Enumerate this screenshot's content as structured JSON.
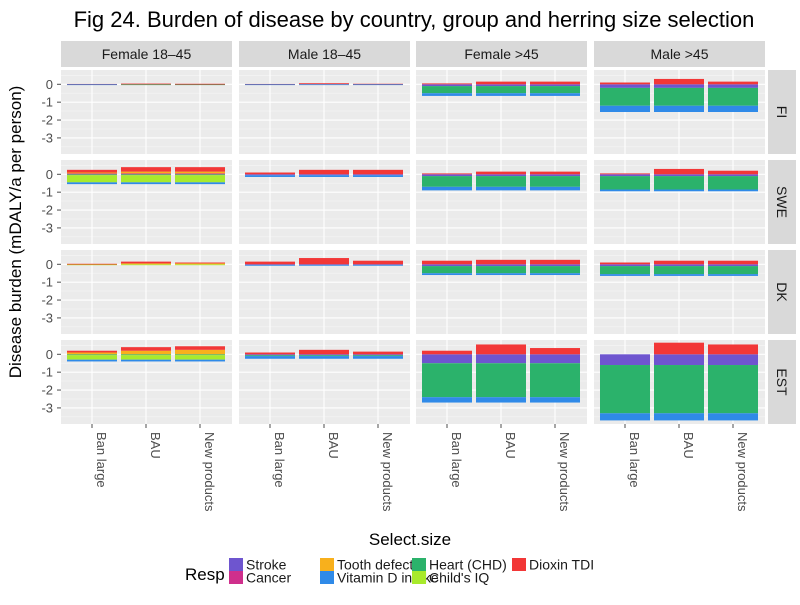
{
  "chart_data": {
    "type": "bar",
    "stacked": true,
    "title": "Fig 24. Burden of disease by country, group and herring size selection",
    "xlabel": "Select.size",
    "ylabel": "Disease burden (mDALY/a per person)",
    "ylim": [
      -3.9,
      0.8
    ],
    "yticks": [
      0,
      -1,
      -2,
      -3
    ],
    "categories": [
      "Ban large",
      "BAU",
      "New products"
    ],
    "columns": [
      "Female 18–45",
      "Male 18–45",
      "Female >45",
      "Male >45"
    ],
    "rows": [
      "FI",
      "SWE",
      "DK",
      "EST"
    ],
    "legend": {
      "title": "Resp",
      "entries": [
        "Stroke",
        "Cancer",
        "Tooth defect",
        "Vitamin D intake",
        "Heart (CHD)",
        "Child's IQ",
        "Dioxin TDI"
      ]
    },
    "colors": {
      "Stroke": "#6e55cf",
      "Heart (CHD)": "#2bb26b",
      "Cancer": "#cf2f8c",
      "Child's IQ": "#a8ea2c",
      "Tooth defect": "#f8b01c",
      "Dioxin TDI": "#f23737",
      "Vitamin D intake": "#2f8ae8"
    },
    "responses": [
      "Stroke",
      "Heart (CHD)",
      "Cancer",
      "Child's IQ",
      "Tooth defect",
      "Dioxin TDI",
      "Vitamin D intake"
    ],
    "panels": [
      {
        "row": "FI",
        "col": "Female 18–45",
        "values": [
          {
            "Vitamin D intake": -0.02,
            "Dioxin TDI": 0.02
          },
          {
            "Heart (CHD)": -0.02,
            "Dioxin TDI": 0.04
          },
          {
            "Heart (CHD)": -0.02,
            "Dioxin TDI": 0.03
          }
        ]
      },
      {
        "row": "FI",
        "col": "Male 18–45",
        "values": [
          {
            "Vitamin D intake": -0.02,
            "Dioxin TDI": 0.02
          },
          {
            "Vitamin D intake": -0.02,
            "Dioxin TDI": 0.06
          },
          {
            "Vitamin D intake": -0.03,
            "Dioxin TDI": 0.03
          }
        ]
      },
      {
        "row": "FI",
        "col": "Female >45",
        "values": [
          {
            "Stroke": -0.1,
            "Heart (CHD)": -0.4,
            "Vitamin D intake": -0.15,
            "Dioxin TDI": 0.05
          },
          {
            "Stroke": -0.1,
            "Heart (CHD)": -0.4,
            "Vitamin D intake": -0.15,
            "Dioxin TDI": 0.15
          },
          {
            "Stroke": -0.1,
            "Heart (CHD)": -0.4,
            "Vitamin D intake": -0.15,
            "Dioxin TDI": 0.15
          }
        ]
      },
      {
        "row": "FI",
        "col": "Male >45",
        "values": [
          {
            "Stroke": -0.2,
            "Heart (CHD)": -1.0,
            "Vitamin D intake": -0.35,
            "Dioxin TDI": 0.1
          },
          {
            "Stroke": -0.2,
            "Heart (CHD)": -1.0,
            "Vitamin D intake": -0.35,
            "Dioxin TDI": 0.3
          },
          {
            "Stroke": -0.2,
            "Heart (CHD)": -1.0,
            "Vitamin D intake": -0.35,
            "Dioxin TDI": 0.15
          }
        ]
      },
      {
        "row": "SWE",
        "col": "Female 18–45",
        "values": [
          {
            "Child's IQ": -0.4,
            "Vitamin D intake": -0.1,
            "Heart (CHD)": -0.05,
            "Cancer": 0.05,
            "Dioxin TDI": 0.15,
            "Tooth defect": 0.05
          },
          {
            "Child's IQ": -0.4,
            "Vitamin D intake": -0.1,
            "Heart (CHD)": -0.05,
            "Cancer": 0.05,
            "Dioxin TDI": 0.25,
            "Tooth defect": 0.1
          },
          {
            "Child's IQ": -0.4,
            "Vitamin D intake": -0.1,
            "Heart (CHD)": -0.05,
            "Cancer": 0.05,
            "Dioxin TDI": 0.25,
            "Tooth defect": 0.1
          }
        ]
      },
      {
        "row": "SWE",
        "col": "Male 18–45",
        "values": [
          {
            "Stroke": -0.05,
            "Vitamin D intake": -0.1,
            "Dioxin TDI": 0.1
          },
          {
            "Stroke": -0.05,
            "Vitamin D intake": -0.1,
            "Dioxin TDI": 0.25
          },
          {
            "Stroke": -0.05,
            "Vitamin D intake": -0.1,
            "Dioxin TDI": 0.25
          }
        ]
      },
      {
        "row": "SWE",
        "col": "Female >45",
        "values": [
          {
            "Stroke": -0.1,
            "Heart (CHD)": -0.6,
            "Vitamin D intake": -0.2,
            "Dioxin TDI": 0.05
          },
          {
            "Stroke": -0.1,
            "Heart (CHD)": -0.6,
            "Vitamin D intake": -0.2,
            "Dioxin TDI": 0.15
          },
          {
            "Stroke": -0.1,
            "Heart (CHD)": -0.6,
            "Vitamin D intake": -0.2,
            "Dioxin TDI": 0.15
          }
        ]
      },
      {
        "row": "SWE",
        "col": "Male >45",
        "values": [
          {
            "Stroke": -0.1,
            "Heart (CHD)": -0.75,
            "Vitamin D intake": -0.1,
            "Dioxin TDI": 0.05
          },
          {
            "Stroke": -0.1,
            "Heart (CHD)": -0.75,
            "Vitamin D intake": -0.1,
            "Dioxin TDI": 0.3
          },
          {
            "Stroke": -0.1,
            "Heart (CHD)": -0.75,
            "Vitamin D intake": -0.1,
            "Dioxin TDI": 0.2
          }
        ]
      },
      {
        "row": "DK",
        "col": "Female 18–45",
        "values": [
          {
            "Child's IQ": -0.05,
            "Dioxin TDI": 0.03
          },
          {
            "Child's IQ": -0.05,
            "Dioxin TDI": 0.1,
            "Tooth defect": 0.05
          },
          {
            "Child's IQ": -0.05,
            "Dioxin TDI": 0.05,
            "Tooth defect": 0.05
          }
        ]
      },
      {
        "row": "DK",
        "col": "Male 18–45",
        "values": [
          {
            "Stroke": -0.03,
            "Vitamin D intake": -0.05,
            "Dioxin TDI": 0.15
          },
          {
            "Stroke": -0.03,
            "Vitamin D intake": -0.05,
            "Dioxin TDI": 0.35
          },
          {
            "Stroke": -0.03,
            "Vitamin D intake": -0.05,
            "Dioxin TDI": 0.2
          }
        ]
      },
      {
        "row": "DK",
        "col": "Female >45",
        "values": [
          {
            "Stroke": -0.1,
            "Heart (CHD)": -0.4,
            "Vitamin D intake": -0.1,
            "Dioxin TDI": 0.2
          },
          {
            "Stroke": -0.1,
            "Heart (CHD)": -0.4,
            "Vitamin D intake": -0.1,
            "Dioxin TDI": 0.25
          },
          {
            "Stroke": -0.1,
            "Heart (CHD)": -0.4,
            "Vitamin D intake": -0.1,
            "Dioxin TDI": 0.25
          }
        ]
      },
      {
        "row": "DK",
        "col": "Male >45",
        "values": [
          {
            "Stroke": -0.1,
            "Heart (CHD)": -0.45,
            "Vitamin D intake": -0.1,
            "Dioxin TDI": 0.1
          },
          {
            "Stroke": -0.1,
            "Heart (CHD)": -0.45,
            "Vitamin D intake": -0.1,
            "Dioxin TDI": 0.2
          },
          {
            "Stroke": -0.1,
            "Heart (CHD)": -0.45,
            "Vitamin D intake": -0.1,
            "Dioxin TDI": 0.2
          }
        ]
      },
      {
        "row": "EST",
        "col": "Female 18–45",
        "values": [
          {
            "Child's IQ": -0.25,
            "Vitamin D intake": -0.1,
            "Heart (CHD)": -0.05,
            "Dioxin TDI": 0.1,
            "Tooth defect": 0.1
          },
          {
            "Child's IQ": -0.25,
            "Vitamin D intake": -0.1,
            "Heart (CHD)": -0.05,
            "Dioxin TDI": 0.2,
            "Tooth defect": 0.2
          },
          {
            "Child's IQ": -0.25,
            "Vitamin D intake": -0.1,
            "Heart (CHD)": -0.05,
            "Dioxin TDI": 0.2,
            "Tooth defect": 0.25
          }
        ]
      },
      {
        "row": "EST",
        "col": "Male 18–45",
        "values": [
          {
            "Stroke": -0.05,
            "Vitamin D intake": -0.15,
            "Heart (CHD)": -0.05,
            "Dioxin TDI": 0.1
          },
          {
            "Stroke": -0.05,
            "Vitamin D intake": -0.15,
            "Heart (CHD)": -0.05,
            "Dioxin TDI": 0.25
          },
          {
            "Stroke": -0.05,
            "Vitamin D intake": -0.15,
            "Heart (CHD)": -0.05,
            "Dioxin TDI": 0.15
          }
        ]
      },
      {
        "row": "EST",
        "col": "Female >45",
        "values": [
          {
            "Stroke": -0.5,
            "Heart (CHD)": -1.9,
            "Vitamin D intake": -0.3,
            "Dioxin TDI": 0.2
          },
          {
            "Stroke": -0.5,
            "Heart (CHD)": -1.9,
            "Vitamin D intake": -0.3,
            "Dioxin TDI": 0.55
          },
          {
            "Stroke": -0.5,
            "Heart (CHD)": -1.9,
            "Vitamin D intake": -0.3,
            "Dioxin TDI": 0.35
          }
        ]
      },
      {
        "row": "EST",
        "col": "Male >45",
        "values": [
          {
            "Stroke": -0.6,
            "Heart (CHD)": -2.7,
            "Vitamin D intake": -0.4
          },
          {
            "Stroke": -0.6,
            "Heart (CHD)": -2.7,
            "Vitamin D intake": -0.4,
            "Dioxin TDI": 0.65
          },
          {
            "Stroke": -0.6,
            "Heart (CHD)": -2.7,
            "Vitamin D intake": -0.4,
            "Dioxin TDI": 0.55
          }
        ]
      }
    ]
  }
}
